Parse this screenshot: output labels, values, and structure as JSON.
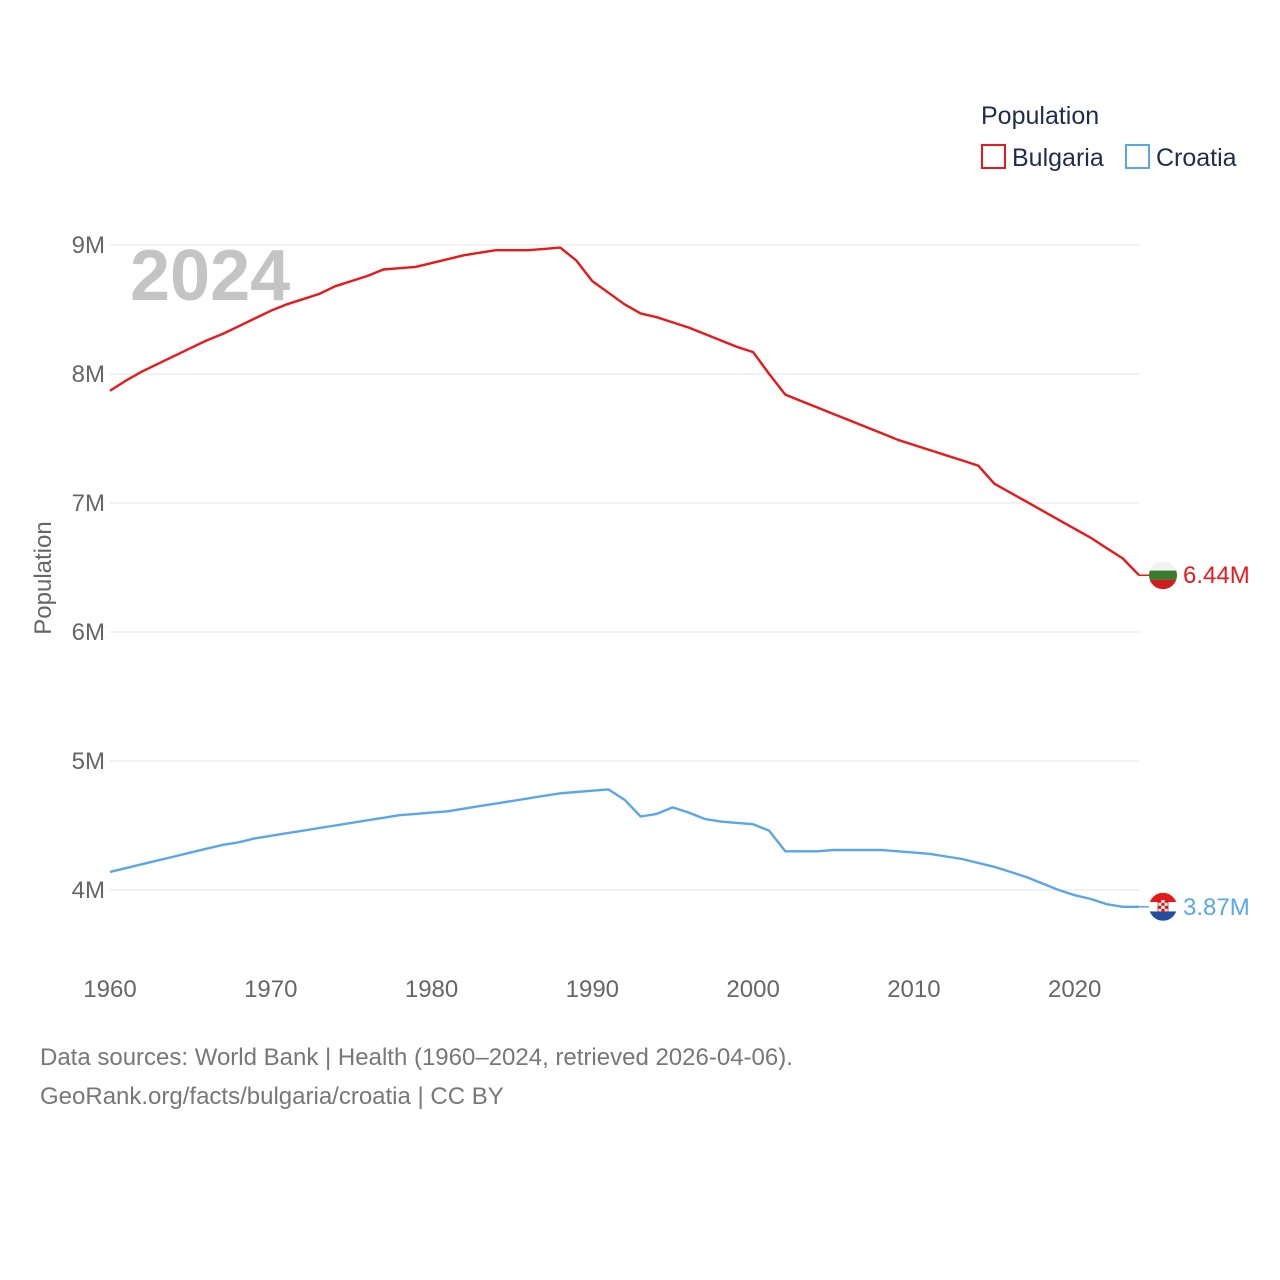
{
  "chart_data": {
    "type": "line",
    "title": "Population",
    "ylabel": "Population",
    "xlabel": "",
    "year_label": "2024",
    "xlim": [
      1960,
      2024
    ],
    "ylim": [
      3500000,
      9300000
    ],
    "x_ticks": [
      1960,
      1970,
      1980,
      1990,
      2000,
      2010,
      2020
    ],
    "x_tick_labels": [
      "1960",
      "1970",
      "1980",
      "1990",
      "2000",
      "2010",
      "2020"
    ],
    "y_ticks": [
      4000000,
      5000000,
      6000000,
      7000000,
      8000000,
      9000000
    ],
    "y_tick_labels": [
      "4M",
      "5M",
      "6M",
      "7M",
      "8M",
      "9M"
    ],
    "grid": true,
    "legend_position": "top-right",
    "x": [
      1960,
      1961,
      1962,
      1963,
      1964,
      1965,
      1966,
      1967,
      1968,
      1969,
      1970,
      1971,
      1972,
      1973,
      1974,
      1975,
      1976,
      1977,
      1978,
      1979,
      1980,
      1981,
      1982,
      1983,
      1984,
      1985,
      1986,
      1987,
      1988,
      1989,
      1990,
      1991,
      1992,
      1993,
      1994,
      1995,
      1996,
      1997,
      1998,
      1999,
      2000,
      2001,
      2002,
      2003,
      2004,
      2005,
      2006,
      2007,
      2008,
      2009,
      2010,
      2011,
      2012,
      2013,
      2014,
      2015,
      2016,
      2017,
      2018,
      2019,
      2020,
      2021,
      2022,
      2023,
      2024
    ],
    "series": [
      {
        "name": "Bulgaria",
        "color": "#e8191b",
        "end_label": "6.44M",
        "flag": "bulgaria-flag",
        "values": [
          7870000,
          7950000,
          8020000,
          8080000,
          8140000,
          8200000,
          8260000,
          8310000,
          8370000,
          8430000,
          8490000,
          8540000,
          8580000,
          8620000,
          8680000,
          8720000,
          8760000,
          8810000,
          8820000,
          8830000,
          8860000,
          8890000,
          8920000,
          8940000,
          8960000,
          8960000,
          8960000,
          8970000,
          8980000,
          8880000,
          8720000,
          8630000,
          8540000,
          8470000,
          8440000,
          8400000,
          8360000,
          8310000,
          8260000,
          8210000,
          8170000,
          8000000,
          7840000,
          7790000,
          7740000,
          7690000,
          7640000,
          7590000,
          7540000,
          7490000,
          7450000,
          7410000,
          7370000,
          7330000,
          7290000,
          7150000,
          7080000,
          7010000,
          6940000,
          6870000,
          6800000,
          6730000,
          6650000,
          6570000,
          6440000
        ],
        "values_note": ""
      },
      {
        "name": "Croatia",
        "color": "#5aa7e8",
        "end_label": "3.87M",
        "flag": "croatia-flag",
        "values": [
          4140000,
          4170000,
          4200000,
          4230000,
          4260000,
          4290000,
          4320000,
          4350000,
          4370000,
          4400000,
          4420000,
          4440000,
          4460000,
          4480000,
          4500000,
          4520000,
          4540000,
          4560000,
          4580000,
          4590000,
          4600000,
          4610000,
          4630000,
          4650000,
          4670000,
          4690000,
          4710000,
          4730000,
          4750000,
          4760000,
          4770000,
          4780000,
          4700000,
          4570000,
          4590000,
          4640000,
          4600000,
          4550000,
          4530000,
          4520000,
          4510000,
          4460000,
          4300000,
          4300000,
          4300000,
          4310000,
          4310000,
          4310000,
          4310000,
          4300000,
          4290000,
          4280000,
          4260000,
          4240000,
          4210000,
          4180000,
          4140000,
          4100000,
          4050000,
          4000000,
          3960000,
          3930000,
          3890000,
          3870000,
          3870000
        ]
      }
    ]
  },
  "legend": {
    "title": "Population",
    "items": [
      {
        "label": "Bulgaria",
        "color": "#e8191b"
      },
      {
        "label": "Croatia",
        "color": "#5aa7e8"
      }
    ]
  },
  "footer": {
    "line1": "Data sources: World Bank | Health (1960–2024, retrieved 2026-04-06).",
    "line2": "GeoRank.org/facts/bulgaria/croatia | CC BY"
  }
}
